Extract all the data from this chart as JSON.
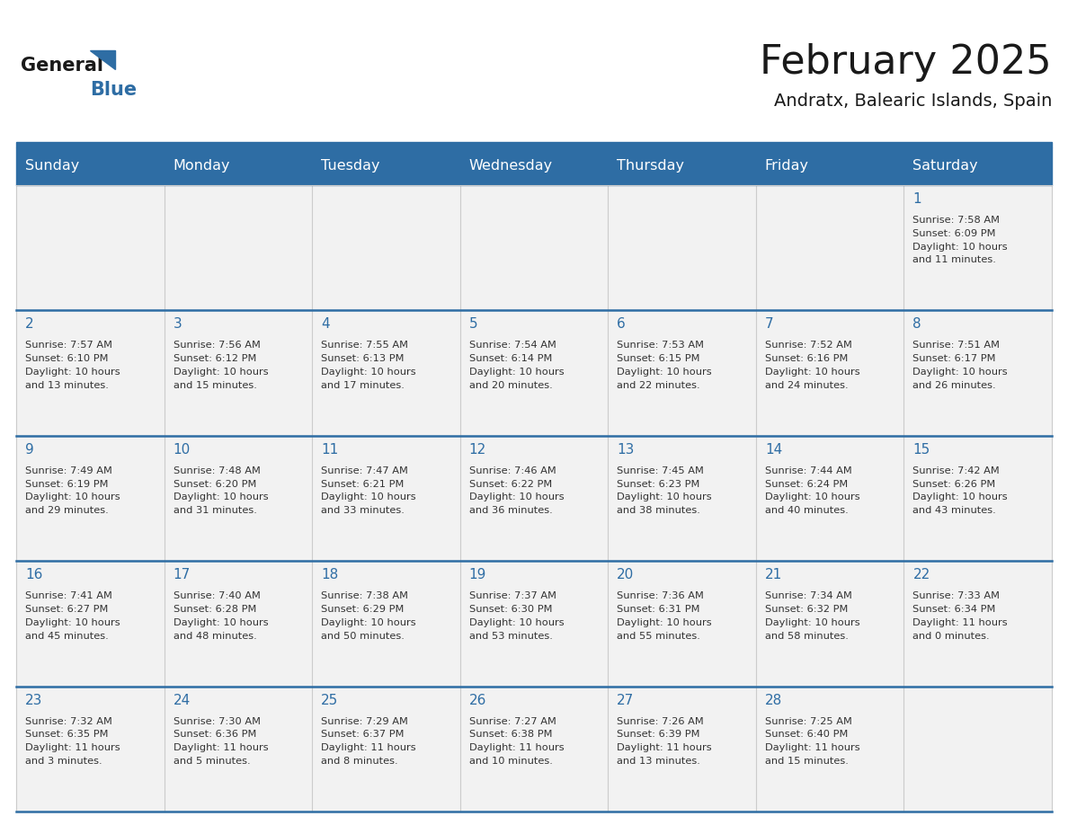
{
  "title": "February 2025",
  "subtitle": "Andratx, Balearic Islands, Spain",
  "header_bg": "#2E6DA4",
  "header_text_color": "#FFFFFF",
  "cell_bg": "#F2F2F2",
  "cell_bg_white": "#FFFFFF",
  "day_headers": [
    "Sunday",
    "Monday",
    "Tuesday",
    "Wednesday",
    "Thursday",
    "Friday",
    "Saturday"
  ],
  "title_color": "#1a1a1a",
  "subtitle_color": "#1a1a1a",
  "day_number_color": "#2E6DA4",
  "info_text_color": "#333333",
  "grid_color_week": "#2E6DA4",
  "grid_color_col": "#CCCCCC",
  "days": [
    {
      "day": 1,
      "col": 6,
      "row": 0,
      "sunrise": "7:58 AM",
      "sunset": "6:09 PM",
      "daylight_h": "10 hours",
      "daylight_m": "11 minutes."
    },
    {
      "day": 2,
      "col": 0,
      "row": 1,
      "sunrise": "7:57 AM",
      "sunset": "6:10 PM",
      "daylight_h": "10 hours",
      "daylight_m": "13 minutes."
    },
    {
      "day": 3,
      "col": 1,
      "row": 1,
      "sunrise": "7:56 AM",
      "sunset": "6:12 PM",
      "daylight_h": "10 hours",
      "daylight_m": "15 minutes."
    },
    {
      "day": 4,
      "col": 2,
      "row": 1,
      "sunrise": "7:55 AM",
      "sunset": "6:13 PM",
      "daylight_h": "10 hours",
      "daylight_m": "17 minutes."
    },
    {
      "day": 5,
      "col": 3,
      "row": 1,
      "sunrise": "7:54 AM",
      "sunset": "6:14 PM",
      "daylight_h": "10 hours",
      "daylight_m": "20 minutes."
    },
    {
      "day": 6,
      "col": 4,
      "row": 1,
      "sunrise": "7:53 AM",
      "sunset": "6:15 PM",
      "daylight_h": "10 hours",
      "daylight_m": "22 minutes."
    },
    {
      "day": 7,
      "col": 5,
      "row": 1,
      "sunrise": "7:52 AM",
      "sunset": "6:16 PM",
      "daylight_h": "10 hours",
      "daylight_m": "24 minutes."
    },
    {
      "day": 8,
      "col": 6,
      "row": 1,
      "sunrise": "7:51 AM",
      "sunset": "6:17 PM",
      "daylight_h": "10 hours",
      "daylight_m": "26 minutes."
    },
    {
      "day": 9,
      "col": 0,
      "row": 2,
      "sunrise": "7:49 AM",
      "sunset": "6:19 PM",
      "daylight_h": "10 hours",
      "daylight_m": "29 minutes."
    },
    {
      "day": 10,
      "col": 1,
      "row": 2,
      "sunrise": "7:48 AM",
      "sunset": "6:20 PM",
      "daylight_h": "10 hours",
      "daylight_m": "31 minutes."
    },
    {
      "day": 11,
      "col": 2,
      "row": 2,
      "sunrise": "7:47 AM",
      "sunset": "6:21 PM",
      "daylight_h": "10 hours",
      "daylight_m": "33 minutes."
    },
    {
      "day": 12,
      "col": 3,
      "row": 2,
      "sunrise": "7:46 AM",
      "sunset": "6:22 PM",
      "daylight_h": "10 hours",
      "daylight_m": "36 minutes."
    },
    {
      "day": 13,
      "col": 4,
      "row": 2,
      "sunrise": "7:45 AM",
      "sunset": "6:23 PM",
      "daylight_h": "10 hours",
      "daylight_m": "38 minutes."
    },
    {
      "day": 14,
      "col": 5,
      "row": 2,
      "sunrise": "7:44 AM",
      "sunset": "6:24 PM",
      "daylight_h": "10 hours",
      "daylight_m": "40 minutes."
    },
    {
      "day": 15,
      "col": 6,
      "row": 2,
      "sunrise": "7:42 AM",
      "sunset": "6:26 PM",
      "daylight_h": "10 hours",
      "daylight_m": "43 minutes."
    },
    {
      "day": 16,
      "col": 0,
      "row": 3,
      "sunrise": "7:41 AM",
      "sunset": "6:27 PM",
      "daylight_h": "10 hours",
      "daylight_m": "45 minutes."
    },
    {
      "day": 17,
      "col": 1,
      "row": 3,
      "sunrise": "7:40 AM",
      "sunset": "6:28 PM",
      "daylight_h": "10 hours",
      "daylight_m": "48 minutes."
    },
    {
      "day": 18,
      "col": 2,
      "row": 3,
      "sunrise": "7:38 AM",
      "sunset": "6:29 PM",
      "daylight_h": "10 hours",
      "daylight_m": "50 minutes."
    },
    {
      "day": 19,
      "col": 3,
      "row": 3,
      "sunrise": "7:37 AM",
      "sunset": "6:30 PM",
      "daylight_h": "10 hours",
      "daylight_m": "53 minutes."
    },
    {
      "day": 20,
      "col": 4,
      "row": 3,
      "sunrise": "7:36 AM",
      "sunset": "6:31 PM",
      "daylight_h": "10 hours",
      "daylight_m": "55 minutes."
    },
    {
      "day": 21,
      "col": 5,
      "row": 3,
      "sunrise": "7:34 AM",
      "sunset": "6:32 PM",
      "daylight_h": "10 hours",
      "daylight_m": "58 minutes."
    },
    {
      "day": 22,
      "col": 6,
      "row": 3,
      "sunrise": "7:33 AM",
      "sunset": "6:34 PM",
      "daylight_h": "11 hours",
      "daylight_m": "0 minutes."
    },
    {
      "day": 23,
      "col": 0,
      "row": 4,
      "sunrise": "7:32 AM",
      "sunset": "6:35 PM",
      "daylight_h": "11 hours",
      "daylight_m": "3 minutes."
    },
    {
      "day": 24,
      "col": 1,
      "row": 4,
      "sunrise": "7:30 AM",
      "sunset": "6:36 PM",
      "daylight_h": "11 hours",
      "daylight_m": "5 minutes."
    },
    {
      "day": 25,
      "col": 2,
      "row": 4,
      "sunrise": "7:29 AM",
      "sunset": "6:37 PM",
      "daylight_h": "11 hours",
      "daylight_m": "8 minutes."
    },
    {
      "day": 26,
      "col": 3,
      "row": 4,
      "sunrise": "7:27 AM",
      "sunset": "6:38 PM",
      "daylight_h": "11 hours",
      "daylight_m": "10 minutes."
    },
    {
      "day": 27,
      "col": 4,
      "row": 4,
      "sunrise": "7:26 AM",
      "sunset": "6:39 PM",
      "daylight_h": "11 hours",
      "daylight_m": "13 minutes."
    },
    {
      "day": 28,
      "col": 5,
      "row": 4,
      "sunrise": "7:25 AM",
      "sunset": "6:40 PM",
      "daylight_h": "11 hours",
      "daylight_m": "15 minutes."
    }
  ]
}
